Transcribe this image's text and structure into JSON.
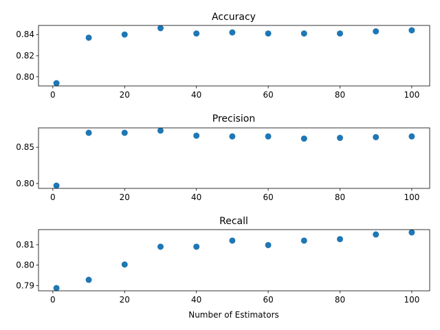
{
  "chart_data": [
    {
      "type": "scatter",
      "title": "Accuracy",
      "xlabel": "",
      "ylabel": "",
      "x": [
        1,
        10,
        20,
        30,
        40,
        50,
        60,
        70,
        80,
        90,
        100
      ],
      "y": [
        0.794,
        0.837,
        0.84,
        0.846,
        0.841,
        0.842,
        0.841,
        0.841,
        0.841,
        0.843,
        0.844
      ],
      "xlim": [
        -4.0,
        105.0
      ],
      "ylim": [
        0.7914,
        0.8486
      ],
      "xticks": [
        0,
        20,
        40,
        60,
        80,
        100
      ],
      "yticks": [
        0.8,
        0.82,
        0.84
      ],
      "ytick_labels": [
        "0.80",
        "0.82",
        "0.84"
      ],
      "color": "#1f77b4",
      "grid": false,
      "legend": "none"
    },
    {
      "type": "scatter",
      "title": "Precision",
      "xlabel": "",
      "ylabel": "",
      "x": [
        1,
        10,
        20,
        30,
        40,
        50,
        60,
        70,
        80,
        90,
        100
      ],
      "y": [
        0.797,
        0.87,
        0.87,
        0.873,
        0.866,
        0.865,
        0.865,
        0.862,
        0.863,
        0.864,
        0.865
      ],
      "xlim": [
        -4.0,
        105.0
      ],
      "ylim": [
        0.7932,
        0.8768
      ],
      "xticks": [
        0,
        20,
        40,
        60,
        80,
        100
      ],
      "yticks": [
        0.8,
        0.85
      ],
      "ytick_labels": [
        "0.80",
        "0.85"
      ],
      "color": "#1f77b4",
      "grid": false,
      "legend": "none"
    },
    {
      "type": "scatter",
      "title": "Recall",
      "xlabel": "Number of Estimators",
      "ylabel": "",
      "x": [
        1,
        10,
        20,
        30,
        40,
        50,
        60,
        70,
        80,
        90,
        100
      ],
      "y": [
        0.7888,
        0.7928,
        0.8003,
        0.809,
        0.809,
        0.812,
        0.8098,
        0.812,
        0.8127,
        0.815,
        0.816
      ],
      "xlim": [
        -4.0,
        105.0
      ],
      "ylim": [
        0.78744,
        0.81736
      ],
      "xticks": [
        0,
        20,
        40,
        60,
        80,
        100
      ],
      "yticks": [
        0.79,
        0.8,
        0.81
      ],
      "ytick_labels": [
        "0.79",
        "0.80",
        "0.81"
      ],
      "color": "#1f77b4",
      "grid": false,
      "legend": "none"
    }
  ]
}
